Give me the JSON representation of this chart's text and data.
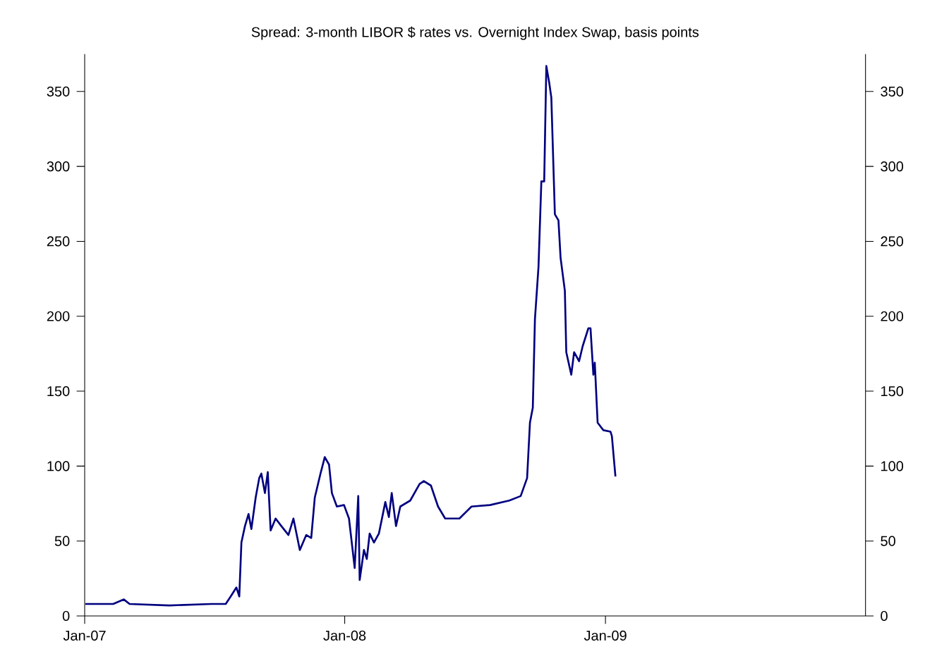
{
  "chart_data": {
    "type": "line",
    "title": "Spread: 3-month LIBOR $ rates vs. Overnight Index Swap, basis points",
    "x": [
      "2007-01-02",
      "2007-02-10",
      "2007-02-25",
      "2007-03-05",
      "2007-04-30",
      "2007-06-28",
      "2007-07-18",
      "2007-07-25",
      "2007-08-02",
      "2007-08-06",
      "2007-08-09",
      "2007-08-14",
      "2007-08-19",
      "2007-08-23",
      "2007-08-29",
      "2007-09-03",
      "2007-09-06",
      "2007-09-11",
      "2007-09-15",
      "2007-09-19",
      "2007-09-26",
      "2007-10-04",
      "2007-10-14",
      "2007-10-21",
      "2007-10-30",
      "2007-11-08",
      "2007-11-15",
      "2007-11-20",
      "2007-11-28",
      "2007-12-04",
      "2007-12-10",
      "2007-12-14",
      "2007-12-21",
      "2007-12-31",
      "2008-01-07",
      "2008-01-15",
      "2008-01-20",
      "2008-01-22",
      "2008-01-28",
      "2008-02-01",
      "2008-02-05",
      "2008-02-11",
      "2008-02-18",
      "2008-02-27",
      "2008-03-03",
      "2008-03-07",
      "2008-03-13",
      "2008-03-19",
      "2008-04-02",
      "2008-04-15",
      "2008-04-21",
      "2008-05-01",
      "2008-05-11",
      "2008-05-21",
      "2008-06-10",
      "2008-06-27",
      "2008-07-23",
      "2008-08-19",
      "2008-09-04",
      "2008-09-13",
      "2008-09-17",
      "2008-09-21",
      "2008-09-24",
      "2008-09-29",
      "2008-10-03",
      "2008-10-07",
      "2008-10-10",
      "2008-10-14",
      "2008-10-17",
      "2008-10-22",
      "2008-10-27",
      "2008-10-30",
      "2008-11-05",
      "2008-11-07",
      "2008-11-14",
      "2008-11-18",
      "2008-11-25",
      "2008-11-30",
      "2008-12-08",
      "2008-12-11",
      "2008-12-15",
      "2008-12-17",
      "2008-12-21",
      "2008-12-29",
      "2009-01-08",
      "2009-01-10",
      "2009-01-15"
    ],
    "series": [
      {
        "color": "#000080",
        "values": [
          8,
          8,
          11,
          8,
          7,
          8,
          8,
          13,
          19,
          13,
          49,
          60,
          68,
          58,
          79,
          92,
          95,
          82,
          96,
          57,
          65,
          60,
          54,
          65,
          44,
          54,
          52,
          79,
          95,
          106,
          101,
          82,
          73,
          74,
          65,
          32,
          80,
          24,
          44,
          38,
          55,
          49,
          55,
          76,
          66,
          82,
          60,
          73,
          77,
          88,
          90,
          87,
          73,
          65,
          65,
          73,
          74,
          77,
          80,
          92,
          129,
          139,
          198,
          233,
          290,
          290,
          367,
          356,
          346,
          268,
          264,
          239,
          217,
          176,
          161,
          176,
          170,
          180,
          192,
          192,
          161,
          169,
          129,
          124,
          123,
          120,
          93
        ]
      }
    ],
    "xlim": [
      "2007-01-01",
      "2010-01-01"
    ],
    "xticks": [
      {
        "value": "2007-01-01",
        "label": "Jan-07"
      },
      {
        "value": "2008-01-01",
        "label": "Jan-08"
      },
      {
        "value": "2009-01-01",
        "label": "Jan-09"
      }
    ],
    "ylim": [
      0,
      375
    ],
    "yticks": [
      0,
      50,
      100,
      150,
      200,
      250,
      300,
      350
    ],
    "y2lim": [
      0,
      375
    ],
    "y2ticks": [
      0,
      50,
      100,
      150,
      200,
      250,
      300,
      350
    ],
    "marker": "none",
    "line_style": "solid"
  }
}
